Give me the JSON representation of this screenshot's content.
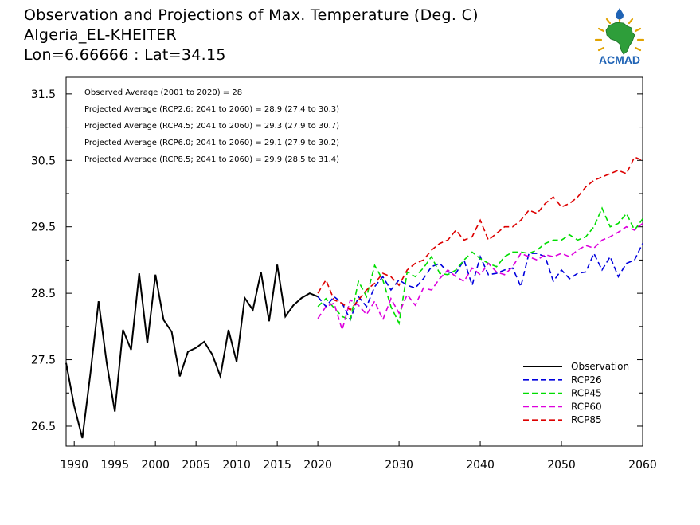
{
  "header": {
    "title": "Observation and Projections of Max. Temperature (Deg. C)",
    "location": "Algeria_EL-KHEITER",
    "coords": "Lon=6.66666 : Lat=34.15"
  },
  "logo": {
    "text": "ACMAD",
    "icon": "africa-map-with-droplet-and-sun"
  },
  "chart_data": {
    "type": "line",
    "xlim": [
      1989,
      2060
    ],
    "ylim": [
      26.2,
      31.75
    ],
    "xticks": [
      1990,
      1995,
      2000,
      2005,
      2010,
      2015,
      2020,
      2030,
      2040,
      2050,
      2060
    ],
    "yticks": [
      26.5,
      27.5,
      28.5,
      29.5,
      30.5,
      31.5
    ],
    "ytick_labels": [
      "26.5",
      "27.5",
      "28.5",
      "29.5",
      "30.5",
      "31.5"
    ],
    "xtick_labels": [
      "1990",
      "1995",
      "2000",
      "2005",
      "2010",
      "2015",
      "2020",
      "2030",
      "2040",
      "2050",
      "2060"
    ],
    "annotations": [
      "Observed Average (2001 to 2020) = 28",
      "Projected Average (RCP2.6; 2041 to 2060) = 28.9 (27.4 to 30.3)",
      "Projected Average (RCP4.5; 2041 to 2060) = 29.3 (27.9 to 30.7)",
      "Projected Average (RCP6.0; 2041 to 2060) = 29.1 (27.9 to 30.2)",
      "Projected Average (RCP8.5; 2041 to 2060) = 29.9 (28.5 to 31.4)"
    ],
    "legend_position": "bottom-right",
    "series": [
      {
        "name": "Observation",
        "color": "#000000",
        "dash": "solid",
        "x": [
          1989,
          1990,
          1991,
          1992,
          1993,
          1994,
          1995,
          1996,
          1997,
          1998,
          1999,
          2000,
          2001,
          2002,
          2003,
          2004,
          2005,
          2006,
          2007,
          2008,
          2009,
          2010,
          2011,
          2012,
          2013,
          2014,
          2015,
          2016,
          2017,
          2018,
          2019,
          2020
        ],
        "y": [
          27.45,
          26.8,
          26.32,
          27.3,
          28.38,
          27.45,
          26.72,
          27.95,
          27.65,
          28.8,
          27.75,
          28.78,
          28.1,
          27.92,
          27.25,
          27.62,
          27.68,
          27.77,
          27.58,
          27.25,
          27.95,
          27.47,
          28.43,
          28.25,
          28.82,
          28.08,
          28.93,
          28.15,
          28.32,
          28.43,
          28.5,
          28.45
        ]
      },
      {
        "name": "RCP26",
        "color": "#0000dd",
        "dash": "dashed",
        "x": [
          2020,
          2021,
          2022,
          2023,
          2024,
          2025,
          2026,
          2027,
          2028,
          2029,
          2030,
          2031,
          2032,
          2033,
          2034,
          2035,
          2036,
          2037,
          2038,
          2039,
          2040,
          2041,
          2042,
          2043,
          2044,
          2045,
          2046,
          2047,
          2048,
          2049,
          2050,
          2051,
          2052,
          2053,
          2054,
          2055,
          2056,
          2057,
          2058,
          2059,
          2060
        ],
        "y": [
          28.45,
          28.3,
          28.45,
          28.35,
          28.1,
          28.45,
          28.3,
          28.6,
          28.75,
          28.55,
          28.7,
          28.62,
          28.58,
          28.72,
          28.9,
          28.95,
          28.82,
          28.8,
          29.0,
          28.62,
          29.05,
          28.78,
          28.8,
          28.85,
          28.88,
          28.6,
          29.1,
          29.1,
          29.05,
          28.68,
          28.85,
          28.72,
          28.8,
          28.82,
          29.1,
          28.85,
          29.05,
          28.75,
          28.95,
          29.0,
          29.25
        ]
      },
      {
        "name": "RCP45",
        "color": "#00dd00",
        "dash": "dashed",
        "x": [
          2020,
          2021,
          2022,
          2023,
          2024,
          2025,
          2026,
          2027,
          2028,
          2029,
          2030,
          2031,
          2032,
          2033,
          2034,
          2035,
          2036,
          2037,
          2038,
          2039,
          2040,
          2041,
          2042,
          2043,
          2044,
          2045,
          2046,
          2047,
          2048,
          2049,
          2050,
          2051,
          2052,
          2053,
          2054,
          2055,
          2056,
          2057,
          2058,
          2059,
          2060
        ],
        "y": [
          28.3,
          28.42,
          28.28,
          28.15,
          28.1,
          28.68,
          28.45,
          28.92,
          28.7,
          28.3,
          28.05,
          28.82,
          28.75,
          28.88,
          29.05,
          28.8,
          28.78,
          28.85,
          29.0,
          29.12,
          29.02,
          28.95,
          28.9,
          29.05,
          29.12,
          29.12,
          29.1,
          29.15,
          29.25,
          29.3,
          29.3,
          29.38,
          29.3,
          29.35,
          29.5,
          29.78,
          29.5,
          29.55,
          29.7,
          29.45,
          29.62
        ]
      },
      {
        "name": "RCP60",
        "color": "#dd00dd",
        "dash": "dashed",
        "x": [
          2020,
          2021,
          2022,
          2023,
          2024,
          2025,
          2026,
          2027,
          2028,
          2029,
          2030,
          2031,
          2032,
          2033,
          2034,
          2035,
          2036,
          2037,
          2038,
          2039,
          2040,
          2041,
          2042,
          2043,
          2044,
          2045,
          2046,
          2047,
          2048,
          2049,
          2050,
          2051,
          2052,
          2053,
          2054,
          2055,
          2056,
          2057,
          2058,
          2059,
          2060
        ],
        "y": [
          28.12,
          28.3,
          28.35,
          27.95,
          28.4,
          28.32,
          28.18,
          28.38,
          28.1,
          28.42,
          28.2,
          28.48,
          28.32,
          28.58,
          28.55,
          28.72,
          28.85,
          28.75,
          28.68,
          28.88,
          28.78,
          28.95,
          28.82,
          28.78,
          28.9,
          29.1,
          29.05,
          29.0,
          29.08,
          29.05,
          29.1,
          29.05,
          29.15,
          29.22,
          29.18,
          29.3,
          29.35,
          29.42,
          29.5,
          29.45,
          29.55
        ]
      },
      {
        "name": "RCP85",
        "color": "#dd0000",
        "dash": "dashed",
        "x": [
          2020,
          2021,
          2022,
          2023,
          2024,
          2025,
          2026,
          2027,
          2028,
          2029,
          2030,
          2031,
          2032,
          2033,
          2034,
          2035,
          2036,
          2037,
          2038,
          2039,
          2040,
          2041,
          2042,
          2043,
          2044,
          2045,
          2046,
          2047,
          2048,
          2049,
          2050,
          2051,
          2052,
          2053,
          2054,
          2055,
          2056,
          2057,
          2058,
          2059,
          2060
        ],
        "y": [
          28.5,
          28.7,
          28.4,
          28.35,
          28.25,
          28.4,
          28.55,
          28.65,
          28.8,
          28.75,
          28.62,
          28.85,
          28.95,
          29.0,
          29.15,
          29.25,
          29.3,
          29.45,
          29.3,
          29.35,
          29.6,
          29.3,
          29.4,
          29.5,
          29.5,
          29.6,
          29.75,
          29.7,
          29.85,
          29.95,
          29.8,
          29.85,
          29.95,
          30.1,
          30.2,
          30.25,
          30.3,
          30.35,
          30.3,
          30.55,
          30.5
        ]
      }
    ]
  }
}
